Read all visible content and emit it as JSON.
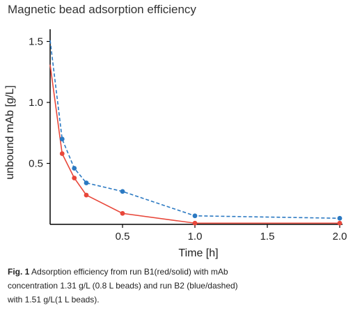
{
  "chart_data": {
    "type": "line",
    "title": "Magnetic bead adsorption efficiency",
    "xlabel": "Time [h]",
    "ylabel": "unbound mAb [g/L]",
    "xlim": [
      0,
      2.0
    ],
    "ylim": [
      0,
      1.6
    ],
    "xticks": [
      0.5,
      1.0,
      1.5,
      2.0
    ],
    "xtick_labels": [
      "0.5",
      "1.0",
      "1.5",
      "2.0"
    ],
    "yticks": [
      0.5,
      1.0,
      1.5
    ],
    "ytick_labels": [
      "0.5",
      "1.0",
      "1.5"
    ],
    "grid": false,
    "series": [
      {
        "color": "#e8473a",
        "style": "solid",
        "x": [
          0,
          0.083,
          0.167,
          0.25,
          0.5,
          1.0,
          2.0
        ],
        "y": [
          1.31,
          0.58,
          0.38,
          0.24,
          0.09,
          0.01,
          0.01
        ]
      },
      {
        "color": "#2b79c2",
        "style": "dashed",
        "x": [
          0,
          0.083,
          0.167,
          0.25,
          0.5,
          1.0,
          2.0
        ],
        "y": [
          1.51,
          0.7,
          0.46,
          0.34,
          0.27,
          0.07,
          0.05
        ]
      }
    ]
  },
  "caption": {
    "label": "Fig. 1",
    "line1": " Adsorption efficiency from run B1(red/solid) with mAb",
    "line2": "concentration 1.31 g/L (0.8 L beads) and run B2 (blue/dashed)",
    "line3": "with 1.51 g/L(1 L beads)."
  }
}
